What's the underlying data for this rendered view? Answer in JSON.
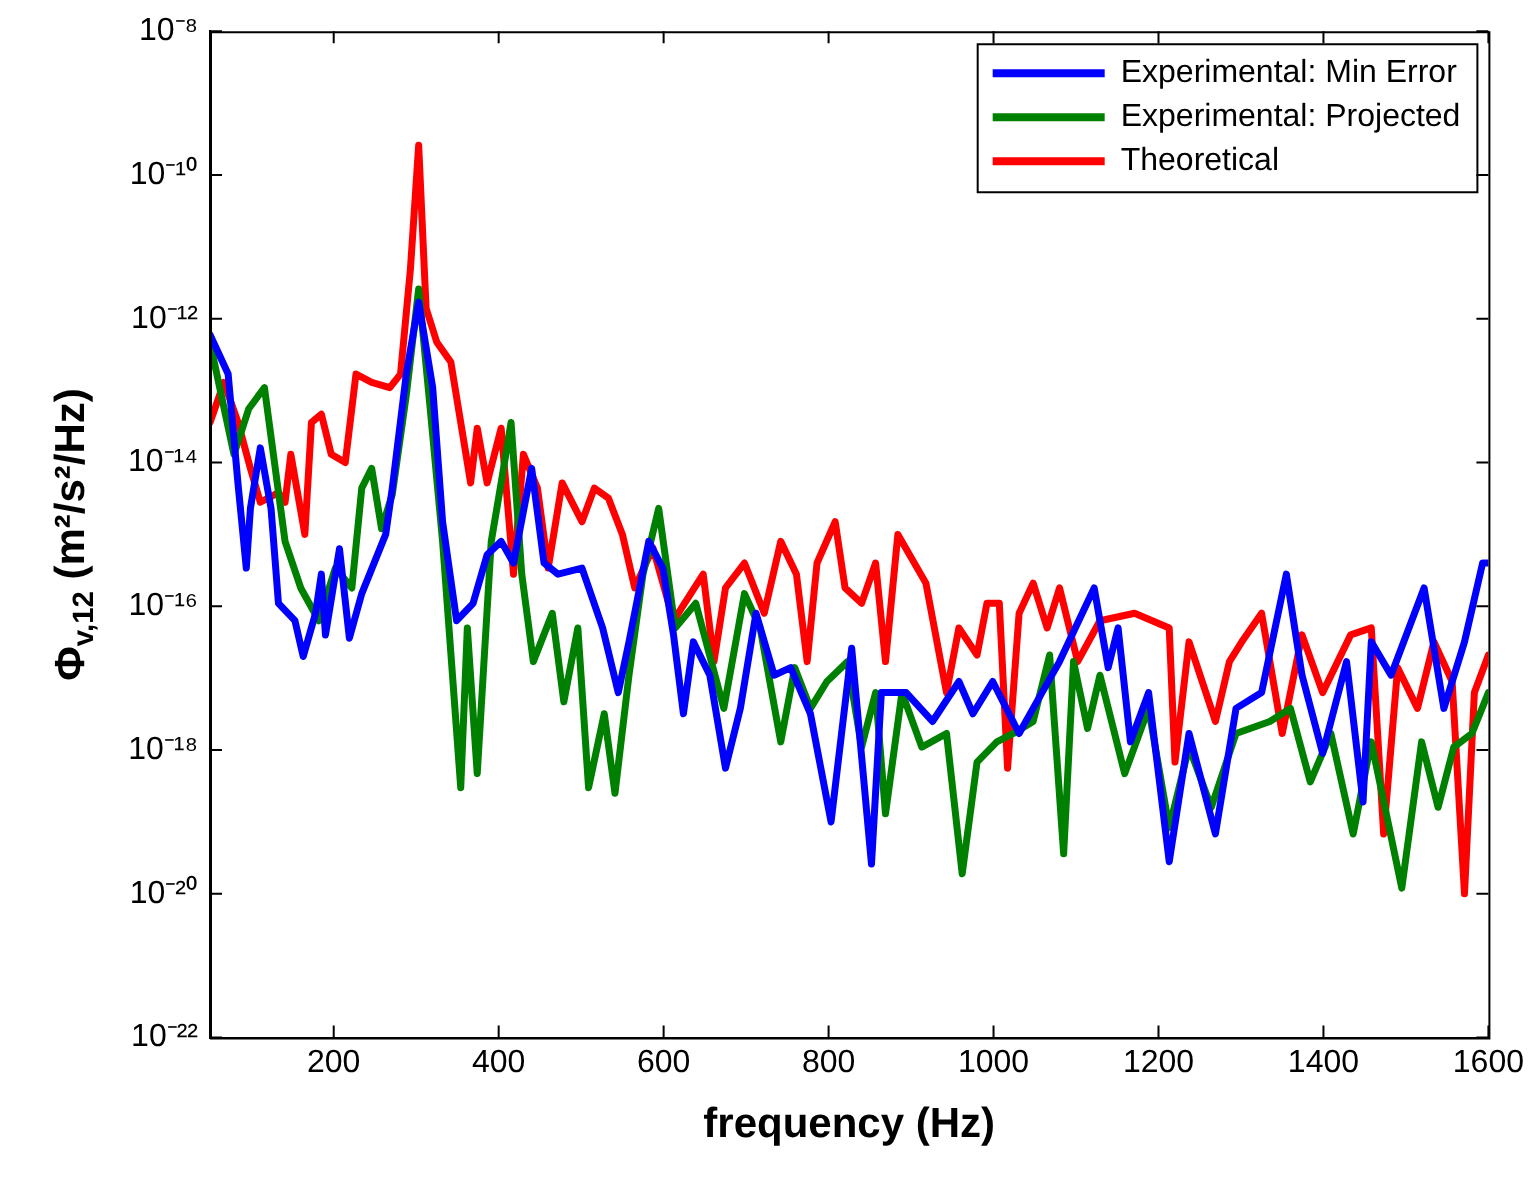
{
  "chart_data": {
    "type": "line",
    "xlabel": "frequency (Hz)",
    "ylabel": "Φ$_{v,12}$ (m²/s²/Hz)",
    "log": "y",
    "grid": false,
    "legend": "top right",
    "marker": "none",
    "line_style": "solid",
    "xlim": [
      50,
      1600
    ],
    "xticks": [
      200,
      400,
      600,
      800,
      1000,
      1200,
      1400,
      1600
    ],
    "ylim": [
      1e-22,
      1e-08
    ],
    "yticks": [
      {
        "value": 1e-22,
        "label": "10⁻²²"
      },
      {
        "value": 1e-20,
        "label": "10⁻²⁰"
      },
      {
        "value": 1e-18,
        "label": "10⁻¹⁸"
      },
      {
        "value": 1e-16,
        "label": "10⁻¹⁶"
      },
      {
        "value": 1e-14,
        "label": "10⁻¹⁴"
      },
      {
        "value": 1e-12,
        "label": "10⁻¹²"
      },
      {
        "value": 1e-10,
        "label": "10⁻¹⁰"
      },
      {
        "value": 1e-08,
        "label": "10⁻⁸"
      }
    ],
    "series": [
      {
        "name": "Experimental: Min Error",
        "color": "#0000ff",
        "x": [
          50,
          72,
          84,
          94,
          99,
          111,
          124,
          133,
          153,
          163,
          178,
          185,
          190,
          207,
          219,
          234,
          263,
          271,
          288,
          303,
          320,
          332,
          349,
          369,
          386,
          403,
          418,
          440,
          455,
          472,
          501,
          526,
          545,
          558,
          582,
          599,
          612,
          624,
          636,
          656,
          675,
          693,
          712,
          734,
          754,
          778,
          803,
          828,
          852,
          864,
          894,
          926,
          958,
          975,
          999,
          1031,
          1048,
          1080,
          1122,
          1139,
          1151,
          1166,
          1188,
          1213,
          1237,
          1269,
          1294,
          1325,
          1355,
          1374,
          1399,
          1428,
          1448,
          1458,
          1482,
          1522,
          1546,
          1571,
          1593,
          1600
        ],
        "values": [
          6e-13,
          1.7e-13,
          5e-15,
          3.4e-16,
          2.3e-15,
          1.6e-14,
          2.3e-15,
          1.1e-16,
          6.3e-17,
          2e-17,
          8e-17,
          2.8e-16,
          4e-17,
          6.3e-16,
          3.6e-17,
          1.5e-16,
          1e-15,
          4.4e-15,
          1.7e-13,
          1.7e-12,
          1.1e-13,
          1.5e-15,
          6.3e-17,
          1.1e-16,
          5.2e-16,
          8e-16,
          4e-16,
          8.3e-15,
          4e-16,
          2.8e-16,
          3.4e-16,
          5e-17,
          6.3e-18,
          3.2e-17,
          8e-16,
          3.4e-16,
          4e-17,
          3.2e-18,
          3.2e-17,
          1.1e-17,
          5.6e-19,
          3.8e-18,
          8e-17,
          1.1e-17,
          1.4e-17,
          3.2e-18,
          1e-19,
          2.6e-17,
          2.6e-20,
          6.3e-18,
          6.3e-18,
          2.5e-18,
          9e-18,
          3.2e-18,
          9e-18,
          1.7e-18,
          3.8e-18,
          1.7e-17,
          1.8e-16,
          1.4e-17,
          5e-17,
          1.3e-18,
          6.3e-18,
          2.8e-20,
          1.7e-18,
          6.8e-20,
          3.8e-18,
          6.3e-18,
          2.8e-16,
          1.1e-17,
          9e-19,
          1.7e-17,
          1.9e-19,
          3.2e-17,
          1.1e-17,
          1.8e-16,
          3.8e-18,
          3.2e-17,
          4e-16,
          4e-16
        ]
      },
      {
        "name": "Experimental: Projected",
        "color": "#008000",
        "x": [
          50,
          79,
          97,
          116,
          141,
          160,
          182,
          202,
          222,
          234,
          246,
          258,
          271,
          288,
          303,
          317,
          332,
          344,
          354,
          362,
          374,
          391,
          403,
          415,
          428,
          442,
          465,
          479,
          496,
          509,
          528,
          541,
          558,
          575,
          594,
          614,
          639,
          673,
          698,
          717,
          742,
          759,
          778,
          798,
          823,
          840,
          857,
          869,
          889,
          913,
          943,
          962,
          980,
          1004,
          1024,
          1048,
          1068,
          1085,
          1097,
          1114,
          1129,
          1159,
          1188,
          1213,
          1237,
          1264,
          1294,
          1335,
          1360,
          1384,
          1409,
          1436,
          1458,
          1495,
          1519,
          1539,
          1558,
          1580,
          1600
        ],
        "values": [
          4.7e-13,
          1.3e-14,
          5.6e-14,
          1.1e-13,
          8e-16,
          1.8e-16,
          6.3e-17,
          3.4e-16,
          1.8e-16,
          4.4e-15,
          8.3e-15,
          1.2e-15,
          3.6e-15,
          8.7e-14,
          2.6e-12,
          5.6e-14,
          8e-16,
          1.1e-17,
          3e-19,
          5e-17,
          4.7e-19,
          8e-16,
          5.2e-15,
          3.6e-14,
          2.8e-16,
          1.7e-17,
          8e-17,
          4.7e-18,
          5e-17,
          3e-19,
          3.2e-18,
          2.5e-19,
          1.1e-17,
          2.8e-16,
          2.3e-15,
          5e-17,
          1.1e-16,
          3.8e-18,
          1.5e-16,
          5e-17,
          1.3e-18,
          1.4e-17,
          3.8e-18,
          9e-18,
          1.7e-17,
          1.1e-18,
          6.3e-18,
          1.3e-19,
          6.3e-18,
          1.1e-18,
          1.7e-18,
          1.9e-20,
          6.8e-19,
          1.3e-18,
          1.7e-18,
          2.5e-18,
          2.1e-17,
          3.6e-20,
          1.7e-17,
          2e-18,
          1.1e-17,
          4.7e-19,
          3.8e-18,
          8.3e-20,
          1.1e-18,
          1.6e-19,
          1.7e-18,
          2.5e-18,
          3.8e-18,
          3.6e-19,
          1.7e-18,
          6.8e-20,
          1.3e-18,
          1.2e-20,
          1.3e-18,
          1.6e-19,
          1.1e-18,
          1.7e-18,
          6.3e-18
        ]
      },
      {
        "name": "Theoretical",
        "color": "#ff0000",
        "x": [
          50,
          67,
          84,
          99,
          111,
          133,
          141,
          148,
          165,
          173,
          185,
          197,
          214,
          227,
          246,
          268,
          281,
          293,
          303,
          312,
          325,
          342,
          354,
          366,
          374,
          386,
          403,
          418,
          430,
          447,
          460,
          477,
          501,
          516,
          533,
          550,
          565,
          587,
          612,
          648,
          661,
          675,
          698,
          722,
          742,
          761,
          774,
          786,
          808,
          820,
          840,
          857,
          869,
          884,
          918,
          943,
          958,
          980,
          992,
          1007,
          1017,
          1031,
          1048,
          1065,
          1080,
          1102,
          1129,
          1171,
          1213,
          1220,
          1237,
          1269,
          1286,
          1301,
          1325,
          1350,
          1374,
          1399,
          1433,
          1458,
          1473,
          1490,
          1514,
          1534,
          1556,
          1571,
          1583,
          1600
        ],
        "values": [
          3.6e-14,
          1.3e-13,
          3.6e-14,
          8.3e-15,
          2.8e-15,
          3.8e-15,
          2.8e-15,
          1.3e-14,
          1e-15,
          3.6e-14,
          4.7e-14,
          1.3e-14,
          1e-14,
          1.7e-13,
          1.3e-13,
          1.1e-13,
          1.7e-13,
          4.9e-12,
          2.6e-10,
          1.4e-12,
          4.7e-13,
          2.5e-13,
          3.6e-14,
          5.2e-15,
          3e-14,
          5.2e-15,
          3e-14,
          2.8e-16,
          1.3e-14,
          4.4e-15,
          3.4e-16,
          5.2e-15,
          1.5e-15,
          4.4e-15,
          3.2e-15,
          1e-15,
          1.8e-16,
          6.5e-16,
          6.3e-17,
          2.8e-16,
          1.7e-17,
          1.8e-16,
          4e-16,
          8e-17,
          8e-16,
          2.8e-16,
          1.7e-17,
          4e-16,
          1.5e-15,
          1.8e-16,
          1.1e-16,
          4e-16,
          1.7e-17,
          1e-15,
          2.1e-16,
          6.3e-18,
          5e-17,
          2.1e-17,
          1.1e-16,
          1.1e-16,
          5.6e-19,
          8e-17,
          2.1e-16,
          5e-17,
          1.8e-16,
          1.7e-17,
          6.3e-17,
          8e-17,
          5e-17,
          6.8e-19,
          3.2e-17,
          2.5e-18,
          1.7e-17,
          3.2e-17,
          8e-17,
          1.7e-18,
          4e-17,
          6.3e-18,
          4e-17,
          5e-17,
          6.8e-20,
          1.4e-17,
          3.8e-18,
          3.2e-17,
          9e-18,
          1e-20,
          6.3e-18,
          2.1e-17
        ]
      }
    ]
  }
}
